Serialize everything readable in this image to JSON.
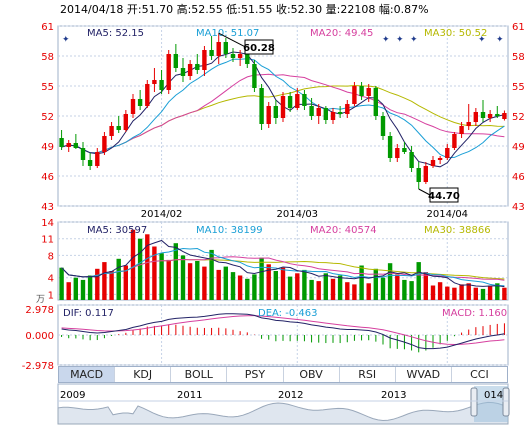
{
  "header": {
    "text": "2014/04/18 开:51.70 高:52.55 低:51.55 收:52.30 量:22108 幅:0.87%"
  },
  "indicator_labels": {
    "price_ma5": "MA5: 52.15",
    "price_ma10": "MA10: 51.07",
    "price_ma20": "MA20: 49.45",
    "price_ma30": "MA30: 50.52",
    "vol_ma5": "MA5: 30597",
    "vol_ma10": "MA10: 38199",
    "vol_ma20": "MA20: 40574",
    "vol_ma30": "MA30: 38866",
    "vol_unit": "万",
    "dif": "DIF: 0.117",
    "dea": "DEA: -0.463",
    "macd": "MACD: 1.160"
  },
  "annotations": {
    "high": "60.28",
    "low": "44.70"
  },
  "tabs": [
    "MACD",
    "KDJ",
    "BOLL",
    "PSY",
    "OBV",
    "RSI",
    "WVAD",
    "CCI"
  ],
  "active_tab": "MACD",
  "navigator_years": [
    "2009",
    "2011",
    "2012",
    "2013",
    "014"
  ],
  "colors": {
    "up": "#e60000",
    "down": "#009900",
    "ma5": "#222266",
    "ma10": "#1a9fd6",
    "ma20": "#d6409f",
    "ma30": "#b5b800",
    "grid": "#c6d2e6",
    "axis_text_red": "#e60000"
  },
  "chart_data": [
    {
      "type": "candlestick",
      "x_tick_labels": [
        "2014/02",
        "2014/03",
        "2014/04"
      ],
      "y_tick_labels": [
        "61",
        "58",
        "55",
        "52",
        "49",
        "46",
        "43"
      ],
      "ylim": [
        43,
        61
      ],
      "candles": [
        {
          "o": 49.8,
          "h": 50.6,
          "l": 48.6,
          "c": 48.9
        },
        {
          "o": 48.9,
          "h": 49.6,
          "l": 48.4,
          "c": 49.3
        },
        {
          "o": 49.3,
          "h": 50.2,
          "l": 48.7,
          "c": 48.8
        },
        {
          "o": 48.8,
          "h": 49.4,
          "l": 47.0,
          "c": 47.6
        },
        {
          "o": 47.6,
          "h": 48.3,
          "l": 46.6,
          "c": 47.0
        },
        {
          "o": 47.0,
          "h": 48.8,
          "l": 46.8,
          "c": 48.4
        },
        {
          "o": 48.4,
          "h": 50.4,
          "l": 48.1,
          "c": 50.0
        },
        {
          "o": 50.0,
          "h": 51.4,
          "l": 49.6,
          "c": 51.0
        },
        {
          "o": 51.0,
          "h": 52.0,
          "l": 50.3,
          "c": 50.6
        },
        {
          "o": 50.6,
          "h": 52.6,
          "l": 50.4,
          "c": 52.2
        },
        {
          "o": 52.2,
          "h": 54.2,
          "l": 51.8,
          "c": 53.7
        },
        {
          "o": 53.7,
          "h": 54.6,
          "l": 52.6,
          "c": 53.0
        },
        {
          "o": 53.0,
          "h": 55.6,
          "l": 52.8,
          "c": 55.2
        },
        {
          "o": 55.2,
          "h": 56.8,
          "l": 54.4,
          "c": 55.6
        },
        {
          "o": 55.6,
          "h": 56.6,
          "l": 54.2,
          "c": 54.6
        },
        {
          "o": 54.6,
          "h": 58.6,
          "l": 54.2,
          "c": 58.2
        },
        {
          "o": 58.2,
          "h": 59.2,
          "l": 56.4,
          "c": 56.8
        },
        {
          "o": 56.8,
          "h": 57.8,
          "l": 55.4,
          "c": 56.0
        },
        {
          "o": 56.0,
          "h": 57.6,
          "l": 55.6,
          "c": 57.2
        },
        {
          "o": 57.2,
          "h": 58.2,
          "l": 56.2,
          "c": 56.6
        },
        {
          "o": 56.6,
          "h": 59.0,
          "l": 56.0,
          "c": 58.6
        },
        {
          "o": 58.6,
          "h": 60.0,
          "l": 57.6,
          "c": 58.0
        },
        {
          "o": 58.0,
          "h": 60.28,
          "l": 57.2,
          "c": 59.4
        },
        {
          "o": 59.4,
          "h": 59.8,
          "l": 57.8,
          "c": 58.2
        },
        {
          "o": 58.2,
          "h": 58.8,
          "l": 57.4,
          "c": 57.8
        },
        {
          "o": 57.8,
          "h": 58.6,
          "l": 57.0,
          "c": 58.2
        },
        {
          "o": 58.2,
          "h": 58.6,
          "l": 56.8,
          "c": 57.2
        },
        {
          "o": 57.2,
          "h": 57.6,
          "l": 54.4,
          "c": 54.8
        },
        {
          "o": 54.8,
          "h": 55.2,
          "l": 50.6,
          "c": 51.2
        },
        {
          "o": 51.2,
          "h": 53.4,
          "l": 50.8,
          "c": 53.0
        },
        {
          "o": 53.0,
          "h": 53.6,
          "l": 51.2,
          "c": 51.8
        },
        {
          "o": 51.8,
          "h": 54.4,
          "l": 51.4,
          "c": 54.0
        },
        {
          "o": 54.0,
          "h": 54.4,
          "l": 52.4,
          "c": 52.8
        },
        {
          "o": 52.8,
          "h": 54.8,
          "l": 52.6,
          "c": 54.2
        },
        {
          "o": 54.2,
          "h": 54.6,
          "l": 52.6,
          "c": 53.0
        },
        {
          "o": 53.0,
          "h": 53.8,
          "l": 51.6,
          "c": 52.0
        },
        {
          "o": 52.0,
          "h": 53.2,
          "l": 51.2,
          "c": 52.8
        },
        {
          "o": 52.8,
          "h": 53.0,
          "l": 51.2,
          "c": 51.6
        },
        {
          "o": 51.6,
          "h": 52.8,
          "l": 51.2,
          "c": 52.4
        },
        {
          "o": 52.4,
          "h": 53.0,
          "l": 51.8,
          "c": 52.2
        },
        {
          "o": 52.2,
          "h": 53.6,
          "l": 51.8,
          "c": 53.2
        },
        {
          "o": 53.2,
          "h": 55.4,
          "l": 53.0,
          "c": 55.0
        },
        {
          "o": 55.0,
          "h": 55.4,
          "l": 53.6,
          "c": 54.0
        },
        {
          "o": 54.0,
          "h": 55.2,
          "l": 53.4,
          "c": 54.8
        },
        {
          "o": 54.8,
          "h": 55.0,
          "l": 51.6,
          "c": 52.0
        },
        {
          "o": 52.0,
          "h": 52.4,
          "l": 49.6,
          "c": 50.0
        },
        {
          "o": 50.0,
          "h": 50.4,
          "l": 47.4,
          "c": 47.8
        },
        {
          "o": 47.8,
          "h": 49.2,
          "l": 47.4,
          "c": 48.8
        },
        {
          "o": 48.8,
          "h": 49.4,
          "l": 48.2,
          "c": 48.4
        },
        {
          "o": 48.4,
          "h": 49.0,
          "l": 46.4,
          "c": 46.8
        },
        {
          "o": 46.8,
          "h": 47.4,
          "l": 44.7,
          "c": 45.4
        },
        {
          "o": 45.4,
          "h": 47.4,
          "l": 45.2,
          "c": 47.0
        },
        {
          "o": 47.0,
          "h": 48.0,
          "l": 46.8,
          "c": 47.6
        },
        {
          "o": 47.6,
          "h": 48.0,
          "l": 47.2,
          "c": 47.8
        },
        {
          "o": 47.8,
          "h": 49.2,
          "l": 47.6,
          "c": 48.8
        },
        {
          "o": 48.8,
          "h": 50.4,
          "l": 48.6,
          "c": 50.2
        },
        {
          "o": 50.2,
          "h": 51.4,
          "l": 49.8,
          "c": 51.0
        },
        {
          "o": 51.0,
          "h": 53.2,
          "l": 50.6,
          "c": 51.4
        },
        {
          "o": 51.4,
          "h": 52.8,
          "l": 51.0,
          "c": 52.4
        },
        {
          "o": 52.4,
          "h": 53.6,
          "l": 51.4,
          "c": 51.8
        },
        {
          "o": 51.8,
          "h": 52.6,
          "l": 51.4,
          "c": 52.2
        },
        {
          "o": 52.2,
          "h": 53.0,
          "l": 51.8,
          "c": 52.0
        },
        {
          "o": 51.7,
          "h": 52.55,
          "l": 51.55,
          "c": 52.3
        }
      ]
    },
    {
      "type": "bar",
      "y_tick_labels": [
        "14",
        "11",
        "8",
        "4",
        "1"
      ],
      "ylim": [
        0,
        14
      ],
      "volumes": [
        5.8,
        3.2,
        4.0,
        3.6,
        4.4,
        5.6,
        6.8,
        5.2,
        7.4,
        6.2,
        12.6,
        11.0,
        11.8,
        9.6,
        8.4,
        7.2,
        10.2,
        8.0,
        6.6,
        7.0,
        6.0,
        9.0,
        5.4,
        6.0,
        5.0,
        4.4,
        3.8,
        4.6,
        7.6,
        6.4,
        5.2,
        5.8,
        4.2,
        4.8,
        5.4,
        3.6,
        3.4,
        4.8,
        3.8,
        4.4,
        3.2,
        2.8,
        6.2,
        3.0,
        5.6,
        4.0,
        6.6,
        4.6,
        3.6,
        3.4,
        6.8,
        5.0,
        2.6,
        3.2,
        2.4,
        2.2,
        2.8,
        3.0,
        2.2,
        2.0,
        2.6,
        3.0,
        2.2
      ]
    },
    {
      "type": "line",
      "y_tick_labels": [
        "2.978",
        "0.000",
        "-2.978"
      ],
      "ylim": [
        -2.978,
        2.978
      ],
      "dif": [
        0.6,
        0.5,
        0.45,
        0.35,
        0.25,
        0.2,
        0.25,
        0.35,
        0.45,
        0.55,
        0.75,
        0.9,
        1.1,
        1.25,
        1.35,
        1.55,
        1.65,
        1.7,
        1.75,
        1.78,
        1.85,
        1.95,
        2.05,
        2.1,
        2.1,
        2.08,
        2.05,
        1.95,
        1.7,
        1.6,
        1.45,
        1.4,
        1.3,
        1.25,
        1.15,
        1.0,
        0.9,
        0.78,
        0.7,
        0.6,
        0.55,
        0.55,
        0.5,
        0.45,
        0.3,
        0.05,
        -0.3,
        -0.5,
        -0.7,
        -0.95,
        -1.25,
        -1.35,
        -1.35,
        -1.3,
        -1.2,
        -1.0,
        -0.8,
        -0.6,
        -0.4,
        -0.25,
        -0.1,
        0.0,
        0.117
      ],
      "dea": [
        0.7,
        0.66,
        0.62,
        0.57,
        0.51,
        0.45,
        0.41,
        0.4,
        0.41,
        0.44,
        0.5,
        0.58,
        0.68,
        0.8,
        0.9,
        1.02,
        1.14,
        1.24,
        1.34,
        1.42,
        1.5,
        1.6,
        1.69,
        1.77,
        1.84,
        1.89,
        1.92,
        1.93,
        1.89,
        1.83,
        1.76,
        1.69,
        1.61,
        1.54,
        1.46,
        1.37,
        1.28,
        1.18,
        1.09,
        1.0,
        0.91,
        0.84,
        0.77,
        0.71,
        0.63,
        0.52,
        0.36,
        0.19,
        0.01,
        -0.18,
        -0.39,
        -0.58,
        -0.72,
        -0.84,
        -0.91,
        -0.94,
        -0.92,
        -0.87,
        -0.79,
        -0.69,
        -0.6,
        -0.55,
        -0.463
      ]
    }
  ]
}
